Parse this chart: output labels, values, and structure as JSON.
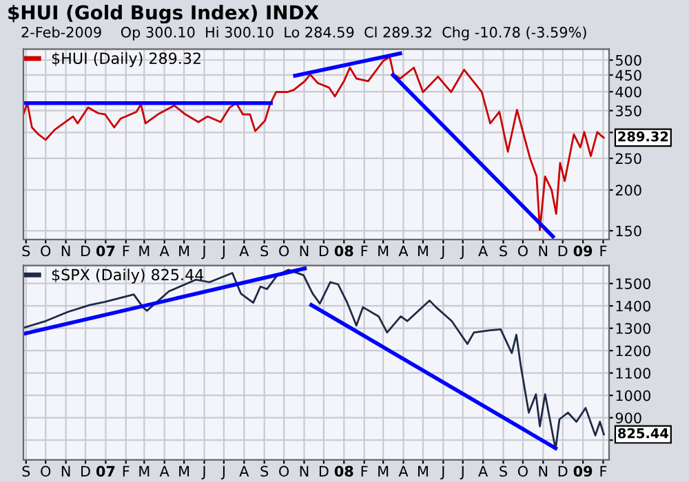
{
  "chart_data": [
    {
      "type": "line",
      "title": "$HUI (Gold Bugs Index) INDX",
      "subtitle": "2-Feb-2009    Op 300.10  Hi 300.10  Lo 284.59  Cl 289.32  Chg -10.78 (-3.59%)",
      "log": "y",
      "grid": true,
      "legend": "top left",
      "xlim": [
        "2006-08-28",
        "2009-02-10"
      ],
      "ylim": [
        141,
        540
      ],
      "xticks": [
        {
          "value": "2006-09-01",
          "label": "S"
        },
        {
          "value": "2006-10-01",
          "label": "O"
        },
        {
          "value": "2006-11-01",
          "label": "N"
        },
        {
          "value": "2006-12-01",
          "label": "D"
        },
        {
          "value": "2007-01-01",
          "label": "07"
        },
        {
          "value": "2007-02-01",
          "label": "F"
        },
        {
          "value": "2007-03-01",
          "label": "M"
        },
        {
          "value": "2007-04-01",
          "label": "A"
        },
        {
          "value": "2007-05-01",
          "label": "M"
        },
        {
          "value": "2007-06-01",
          "label": "J"
        },
        {
          "value": "2007-07-01",
          "label": "J"
        },
        {
          "value": "2007-08-01",
          "label": "A"
        },
        {
          "value": "2007-09-01",
          "label": "S"
        },
        {
          "value": "2007-10-01",
          "label": "O"
        },
        {
          "value": "2007-11-01",
          "label": "N"
        },
        {
          "value": "2007-12-01",
          "label": "D"
        },
        {
          "value": "2008-01-01",
          "label": "08"
        },
        {
          "value": "2008-02-01",
          "label": "F"
        },
        {
          "value": "2008-03-01",
          "label": "M"
        },
        {
          "value": "2008-04-01",
          "label": "A"
        },
        {
          "value": "2008-05-01",
          "label": "M"
        },
        {
          "value": "2008-06-01",
          "label": "J"
        },
        {
          "value": "2008-07-01",
          "label": "J"
        },
        {
          "value": "2008-08-01",
          "label": "A"
        },
        {
          "value": "2008-09-01",
          "label": "S"
        },
        {
          "value": "2008-10-01",
          "label": "O"
        },
        {
          "value": "2008-11-01",
          "label": "N"
        },
        {
          "value": "2008-12-01",
          "label": "D"
        },
        {
          "value": "2009-01-01",
          "label": "09"
        },
        {
          "value": "2009-02-01",
          "label": "F"
        }
      ],
      "yticks": [
        150,
        200,
        250,
        {
          "value": 300,
          "label": null
        },
        350,
        400,
        450,
        500
      ],
      "annotations": [
        {
          "text": "289.32",
          "x": "2009-02-02",
          "y": 289.32
        }
      ],
      "series": [
        {
          "name": "$HUI (Daily) 289.32",
          "color": "#cc0000",
          "x": [
            "2006-08-28",
            "2006-09-03",
            "2006-09-10",
            "2006-09-20",
            "2006-10-01",
            "2006-10-15",
            "2006-11-12",
            "2006-11-19",
            "2006-12-05",
            "2006-12-20",
            "2006-12-31",
            "2007-01-14",
            "2007-01-24",
            "2007-02-17",
            "2007-02-24",
            "2007-03-03",
            "2007-03-22",
            "2007-04-16",
            "2007-05-03",
            "2007-05-23",
            "2007-06-06",
            "2007-06-26",
            "2007-07-10",
            "2007-07-20",
            "2007-07-30",
            "2007-08-10",
            "2007-08-18",
            "2007-09-02",
            "2007-09-09",
            "2007-09-19",
            "2007-10-06",
            "2007-10-16",
            "2007-11-02",
            "2007-11-10",
            "2007-11-22",
            "2007-12-09",
            "2007-12-18",
            "2008-01-01",
            "2008-01-10",
            "2008-01-20",
            "2008-02-07",
            "2008-03-01",
            "2008-03-11",
            "2008-03-17",
            "2008-03-27",
            "2008-04-17",
            "2008-05-01",
            "2008-05-24",
            "2008-06-13",
            "2008-07-03",
            "2008-07-30",
            "2008-08-12",
            "2008-08-26",
            "2008-09-08",
            "2008-09-22",
            "2008-10-12",
            "2008-10-22",
            "2008-10-27",
            "2008-11-04",
            "2008-11-14",
            "2008-11-21",
            "2008-11-27",
            "2008-12-04",
            "2008-12-18",
            "2008-12-28",
            "2009-01-03",
            "2009-01-13",
            "2009-01-23",
            "2009-01-30",
            "2009-02-02"
          ],
          "values": [
            341,
            369,
            311,
            296,
            285,
            306,
            336,
            320,
            358,
            344,
            341,
            311,
            331,
            347,
            366,
            320,
            341,
            363,
            341,
            323,
            336,
            323,
            358,
            369,
            341,
            341,
            303,
            326,
            363,
            399,
            399,
            405,
            431,
            452,
            425,
            412,
            387,
            431,
            474,
            439,
            431,
            497,
            512,
            452,
            439,
            474,
            399,
            445,
            399,
            467,
            399,
            320,
            347,
            262,
            352,
            250,
            220,
            151,
            220,
            200,
            169,
            242,
            213,
            296,
            270,
            301,
            254,
            301,
            292,
            289.32
          ]
        },
        {
          "type": "line",
          "color": "#0000ff",
          "x": [
            "2006-09-01",
            "2007-09-11"
          ],
          "values": [
            369,
            369
          ]
        },
        {
          "type": "line",
          "color": "#0000ff",
          "x": [
            "2007-10-18",
            "2008-03-27"
          ],
          "values": [
            448,
            524
          ]
        },
        {
          "type": "line",
          "color": "#0000ff",
          "x": [
            "2008-03-16",
            "2008-11-16"
          ],
          "values": [
            450,
            144
          ]
        }
      ]
    },
    {
      "type": "line",
      "grid": true,
      "legend": "top left",
      "xlim": [
        "2006-08-28",
        "2009-02-10"
      ],
      "ylim": [
        712,
        1580
      ],
      "xticks": [
        {
          "value": "2006-09-01",
          "label": "S"
        },
        {
          "value": "2006-10-01",
          "label": "O"
        },
        {
          "value": "2006-11-01",
          "label": "N"
        },
        {
          "value": "2006-12-01",
          "label": "D"
        },
        {
          "value": "2007-01-01",
          "label": "07"
        },
        {
          "value": "2007-02-01",
          "label": "F"
        },
        {
          "value": "2007-03-01",
          "label": "M"
        },
        {
          "value": "2007-04-01",
          "label": "A"
        },
        {
          "value": "2007-05-01",
          "label": "M"
        },
        {
          "value": "2007-06-01",
          "label": "J"
        },
        {
          "value": "2007-07-01",
          "label": "J"
        },
        {
          "value": "2007-08-01",
          "label": "A"
        },
        {
          "value": "2007-09-01",
          "label": "S"
        },
        {
          "value": "2007-10-01",
          "label": "O"
        },
        {
          "value": "2007-11-01",
          "label": "N"
        },
        {
          "value": "2007-12-01",
          "label": "D"
        },
        {
          "value": "2008-01-01",
          "label": "08"
        },
        {
          "value": "2008-02-01",
          "label": "F"
        },
        {
          "value": "2008-03-01",
          "label": "M"
        },
        {
          "value": "2008-04-01",
          "label": "A"
        },
        {
          "value": "2008-05-01",
          "label": "M"
        },
        {
          "value": "2008-06-01",
          "label": "J"
        },
        {
          "value": "2008-07-01",
          "label": "J"
        },
        {
          "value": "2008-08-01",
          "label": "A"
        },
        {
          "value": "2008-09-01",
          "label": "S"
        },
        {
          "value": "2008-10-01",
          "label": "O"
        },
        {
          "value": "2008-11-01",
          "label": "N"
        },
        {
          "value": "2008-12-01",
          "label": "D"
        },
        {
          "value": "2009-01-01",
          "label": "09"
        },
        {
          "value": "2009-02-01",
          "label": "F"
        }
      ],
      "yticks": [
        {
          "value": 800,
          "label": null
        },
        900,
        1000,
        1100,
        1200,
        1300,
        1400,
        1500
      ],
      "annotations": [
        {
          "text": "825.44",
          "x": "2009-02-02",
          "y": 825.44
        }
      ],
      "series": [
        {
          "name": "$SPX (Daily) 825.44",
          "color": "#1f2a44",
          "x": [
            "2006-08-28",
            "2006-10-01",
            "2006-11-04",
            "2006-12-08",
            "2006-12-31",
            "2007-02-13",
            "2007-02-27",
            "2007-03-05",
            "2007-04-08",
            "2007-05-19",
            "2007-06-09",
            "2007-07-14",
            "2007-07-27",
            "2007-08-15",
            "2007-08-26",
            "2007-09-05",
            "2007-09-21",
            "2007-10-08",
            "2007-10-31",
            "2007-11-14",
            "2007-11-25",
            "2007-12-11",
            "2007-12-23",
            "2008-01-06",
            "2008-01-20",
            "2008-01-30",
            "2008-02-23",
            "2008-03-07",
            "2008-03-28",
            "2008-04-07",
            "2008-05-11",
            "2008-05-21",
            "2008-06-14",
            "2008-07-08",
            "2008-07-18",
            "2008-08-12",
            "2008-08-28",
            "2008-09-14",
            "2008-09-21",
            "2008-09-28",
            "2008-10-10",
            "2008-10-21",
            "2008-10-27",
            "2008-11-04",
            "2008-11-20",
            "2008-11-26",
            "2008-12-09",
            "2008-12-22",
            "2009-01-05",
            "2009-01-20",
            "2009-01-27",
            "2009-02-02"
          ],
          "values": [
            1302,
            1332,
            1373,
            1404,
            1418,
            1451,
            1394,
            1378,
            1465,
            1517,
            1506,
            1547,
            1455,
            1414,
            1486,
            1475,
            1537,
            1561,
            1537,
            1455,
            1410,
            1506,
            1496,
            1414,
            1312,
            1394,
            1353,
            1281,
            1353,
            1332,
            1424,
            1394,
            1332,
            1230,
            1281,
            1291,
            1295,
            1189,
            1271,
            1128,
            923,
            1005,
            862,
            1005,
            760,
            893,
            923,
            882,
            944,
            821,
            882,
            825.44
          ]
        },
        {
          "type": "line",
          "color": "#0000ff",
          "x": [
            "2006-08-31",
            "2007-11-02"
          ],
          "values": [
            1277,
            1567
          ]
        },
        {
          "type": "line",
          "color": "#0000ff",
          "x": [
            "2007-11-12",
            "2008-11-20"
          ],
          "values": [
            1404,
            764
          ]
        }
      ]
    }
  ]
}
